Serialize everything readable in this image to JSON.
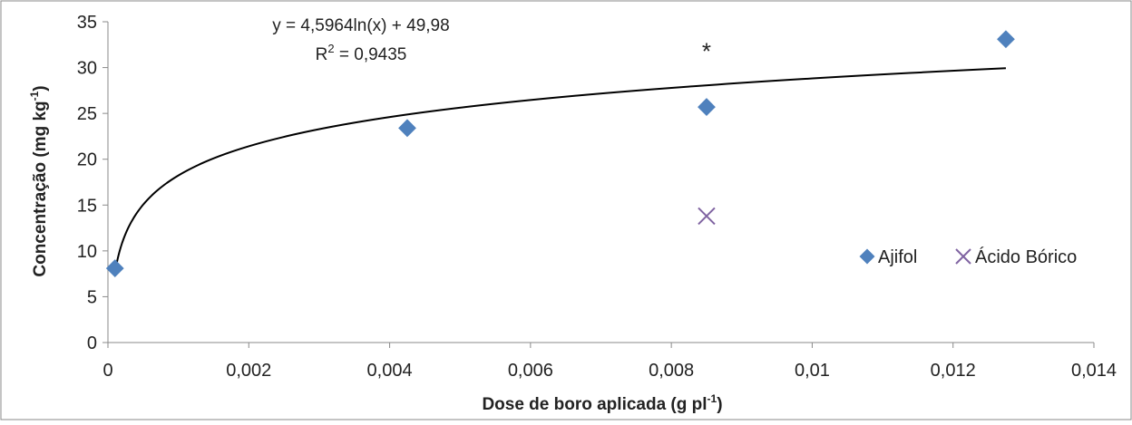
{
  "chart_data": {
    "type": "scatter",
    "xlabel": "Dose de boro aplicada (g pl",
    "xlabel_sup": "-1",
    "xlabel_end": ")",
    "ylabel": "Concentração (mg kg",
    "ylabel_sup": "-1",
    "ylabel_end": ")",
    "xlim": [
      0,
      0.014
    ],
    "ylim": [
      0,
      35
    ],
    "x_ticks": [
      "0",
      "0,002",
      "0,004",
      "0,006",
      "0,008",
      "0,01",
      "0,012",
      "0,014"
    ],
    "y_ticks": [
      "0",
      "5",
      "10",
      "15",
      "20",
      "25",
      "30",
      "35"
    ],
    "x_tick_values": [
      0,
      0.002,
      0.004,
      0.006,
      0.008,
      0.01,
      0.012,
      0.014
    ],
    "y_tick_values": [
      0,
      5,
      10,
      15,
      20,
      25,
      30,
      35
    ],
    "grid": false,
    "legend_position": "right",
    "series": [
      {
        "name": "Ajifol",
        "marker": "diamond",
        "color": "#4f81bd",
        "x": [
          0.0001,
          0.00425,
          0.0085,
          0.01275
        ],
        "y": [
          8.1,
          23.4,
          25.7,
          33.1
        ]
      },
      {
        "name": "Ácido Bórico",
        "marker": "x",
        "color": "#8064a2",
        "x": [
          0.0085
        ],
        "y": [
          13.8
        ]
      }
    ],
    "trendline": {
      "type": "logarithmic",
      "a": 4.5964,
      "b": 49.98,
      "x_range": [
        0.0001,
        0.01275
      ],
      "color": "#000000"
    },
    "annotations": {
      "equation": "y = 4,5964ln(x) + 49,98",
      "r2_prefix": "R",
      "r2_sup": "2",
      "r2_value": " = 0,9435",
      "asterisk": "*",
      "asterisk_x": 0.0085,
      "asterisk_y": 32
    }
  }
}
